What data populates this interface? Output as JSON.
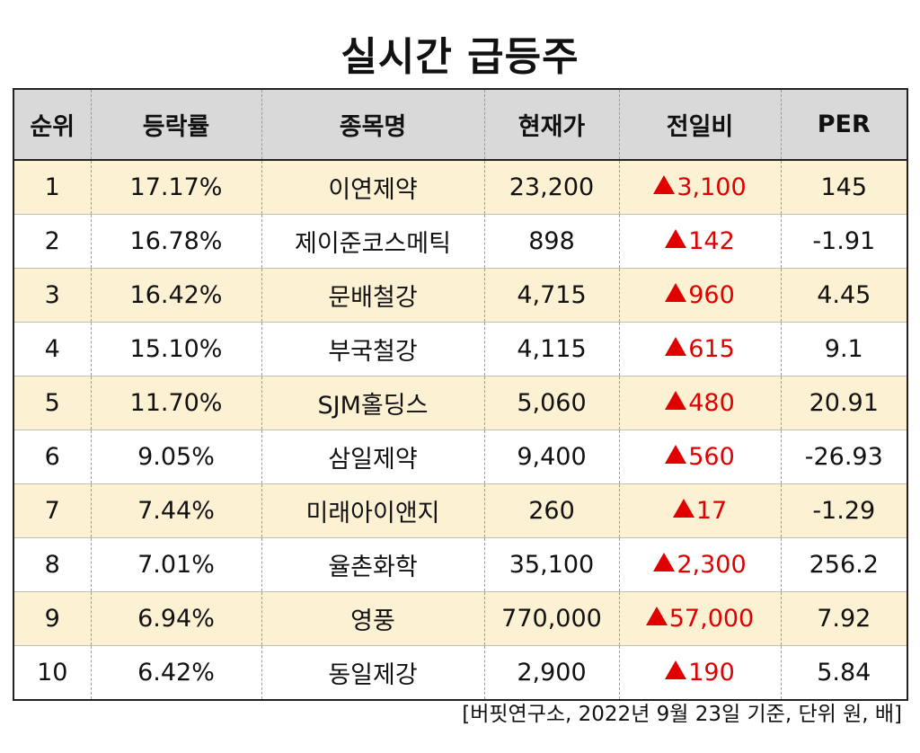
{
  "title": "실시간 급등주",
  "footer": "[버핏연구소, 2022년 9월 23일 기준, 단위 원, 배]",
  "colors": {
    "header_bg": "#d9d9d9",
    "highlight_row": "#fdf1d4",
    "up_red": "#e00000"
  },
  "chart_data": {
    "type": "table",
    "columns": [
      "순위",
      "등락률",
      "종목명",
      "현재가",
      "전일비",
      "PER"
    ],
    "rows": [
      {
        "rank": "1",
        "rate": "17.17%",
        "name": "이연제약",
        "price": "23,200",
        "change": "3,100",
        "per": "145"
      },
      {
        "rank": "2",
        "rate": "16.78%",
        "name": "제이준코스메틱",
        "price": "898",
        "change": "142",
        "per": "-1.91"
      },
      {
        "rank": "3",
        "rate": "16.42%",
        "name": "문배철강",
        "price": "4,715",
        "change": "960",
        "per": "4.45"
      },
      {
        "rank": "4",
        "rate": "15.10%",
        "name": "부국철강",
        "price": "4,115",
        "change": "615",
        "per": "9.1"
      },
      {
        "rank": "5",
        "rate": "11.70%",
        "name": "SJM홀딩스",
        "price": "5,060",
        "change": "480",
        "per": "20.91"
      },
      {
        "rank": "6",
        "rate": "9.05%",
        "name": "삼일제약",
        "price": "9,400",
        "change": "560",
        "per": "-26.93"
      },
      {
        "rank": "7",
        "rate": "7.44%",
        "name": "미래아이앤지",
        "price": "260",
        "change": "17",
        "per": "-1.29"
      },
      {
        "rank": "8",
        "rate": "7.01%",
        "name": "율촌화학",
        "price": "35,100",
        "change": "2,300",
        "per": "256.2"
      },
      {
        "rank": "9",
        "rate": "6.94%",
        "name": "영풍",
        "price": "770,000",
        "change": "57,000",
        "per": "7.92"
      },
      {
        "rank": "10",
        "rate": "6.42%",
        "name": "동일제강",
        "price": "2,900",
        "change": "190",
        "per": "5.84"
      }
    ]
  }
}
